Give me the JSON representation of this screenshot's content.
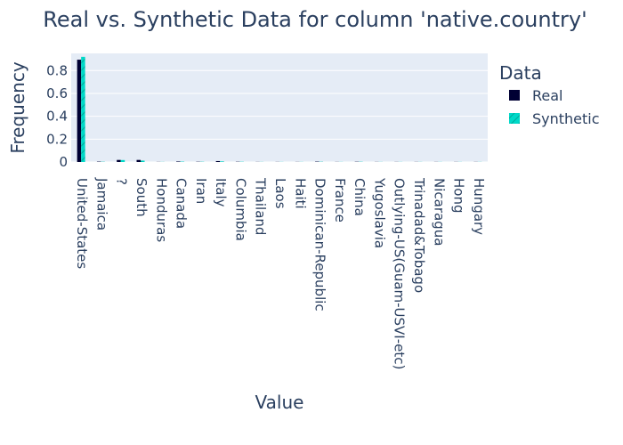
{
  "chart_data": {
    "type": "bar",
    "title": "Real vs. Synthetic Data for column 'native.country'",
    "xlabel": "Value",
    "ylabel": "Frequency",
    "ylim": [
      0,
      0.95
    ],
    "yticks": [
      0,
      0.2,
      0.4,
      0.6,
      0.8
    ],
    "ytick_labels": [
      "0",
      "0.2",
      "0.4",
      "0.6",
      "0.8"
    ],
    "grid": true,
    "legend_title": "Data",
    "legend_position": "top-right",
    "categories": [
      "United-States",
      "Jamaica",
      "?",
      "South",
      "Honduras",
      "Canada",
      "Iran",
      "Italy",
      "Columbia",
      "Thailand",
      "Laos",
      "Haiti",
      "Dominican-Republic",
      "France",
      "China",
      "Yugoslavia",
      "Outlying-US(Guam-USVI-etc)",
      "Trinadad&Tobago",
      "Nicaragua",
      "Hong",
      "Hungary"
    ],
    "series": [
      {
        "name": "Real",
        "color": "#000033",
        "pattern": "solid",
        "values": [
          0.895,
          0.003,
          0.018,
          0.018,
          0.001,
          0.004,
          0.002,
          0.008,
          0.002,
          0.001,
          0.001,
          0.001,
          0.003,
          0.001,
          0.002,
          0.001,
          0.001,
          0.001,
          0.001,
          0.001,
          0.001
        ]
      },
      {
        "name": "Synthetic",
        "color": "#00d9c8",
        "pattern": "hatched",
        "values": [
          0.92,
          0.002,
          0.017,
          0.012,
          0.001,
          0.003,
          0.002,
          0.005,
          0.002,
          0.001,
          0.001,
          0.001,
          0.002,
          0.001,
          0.002,
          0.001,
          0.001,
          0.001,
          0.001,
          0.001,
          0.001
        ]
      }
    ]
  }
}
